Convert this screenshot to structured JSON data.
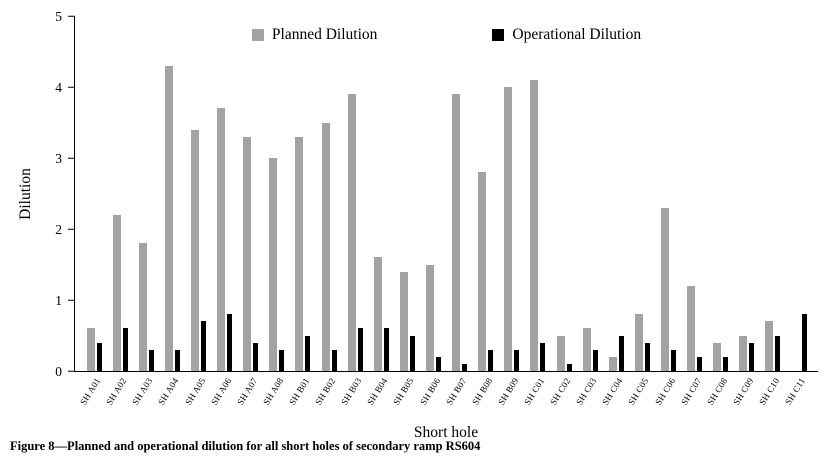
{
  "figure": {
    "caption": "Figure 8—Planned and operational dilution for all short holes of secondary ramp RS604"
  },
  "chart_data": {
    "type": "bar",
    "title": "",
    "xlabel": "Short hole",
    "ylabel": "Dilution",
    "ylim": [
      0,
      5
    ],
    "yticks": [
      0,
      1,
      2,
      3,
      4,
      5
    ],
    "grid": false,
    "legend_position": "top-inside",
    "colors": {
      "planned": "#a3a3a3",
      "operational": "#000000"
    },
    "categories": [
      "SH A01",
      "SH A02",
      "SH A03",
      "SH A04",
      "SH A05",
      "SH A06",
      "SH A07",
      "SH A08",
      "SH B01",
      "SH B02",
      "SH B03",
      "SH B04",
      "SH B05",
      "SH B06",
      "SH B07",
      "SH B08",
      "SH B09",
      "SH C01",
      "SH C02",
      "SH C03",
      "SH C04",
      "SH C05",
      "SH C06",
      "SH C07",
      "SH C08",
      "SH C09",
      "SH C10",
      "SH C11"
    ],
    "series": [
      {
        "name": "Planned Dilution",
        "color_key": "planned",
        "values": [
          0.6,
          2.2,
          1.8,
          4.3,
          3.4,
          3.7,
          3.3,
          3.0,
          3.3,
          3.5,
          3.9,
          1.6,
          1.4,
          1.5,
          3.9,
          2.8,
          4.0,
          4.1,
          0.5,
          0.6,
          0.2,
          0.8,
          2.3,
          1.2,
          0.4,
          0.5,
          0.7,
          0
        ]
      },
      {
        "name": "Operational Dilution",
        "color_key": "operational",
        "values": [
          0.4,
          0.6,
          0.3,
          0.3,
          0.7,
          0.8,
          0.4,
          0.3,
          0.5,
          0.3,
          0.6,
          0.6,
          0.5,
          0.2,
          0.1,
          0.3,
          0.3,
          0.4,
          0.1,
          0.3,
          0.5,
          0.4,
          0.3,
          0.2,
          0.2,
          0.4,
          0.5,
          0.8
        ]
      }
    ]
  }
}
